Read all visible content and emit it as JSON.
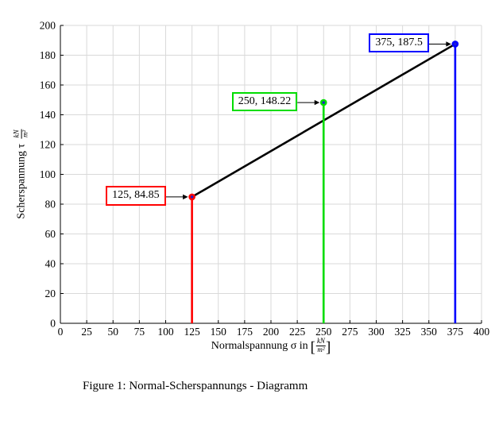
{
  "figure": {
    "caption": "Figure 1: Normal-Scherspannungs - Diagramm",
    "background": "#ffffff"
  },
  "chart_data": {
    "type": "scatter",
    "title": "",
    "xlabel": "Normalspannung σ in [kN/m²]",
    "ylabel": "Scherspannung τ kN/m²",
    "xlabel_prefix": "Normalspannung σ in",
    "ylabel_prefix": "Scherspannung τ",
    "unit_frac": {
      "num": "kN",
      "den": "m²"
    },
    "brackets": [
      "[",
      "]"
    ],
    "xlim": [
      0,
      400
    ],
    "ylim": [
      0,
      200
    ],
    "x_ticks": [
      0,
      25,
      50,
      75,
      100,
      125,
      150,
      175,
      200,
      225,
      250,
      275,
      300,
      325,
      350,
      375,
      400
    ],
    "y_ticks": [
      0,
      20,
      40,
      60,
      80,
      100,
      120,
      140,
      160,
      180,
      200
    ],
    "grid": true,
    "grid_color": "#d9d9d9",
    "axis_color": "#000000",
    "marker_center_color": "#2020cc",
    "points": [
      {
        "x": 125,
        "y": 84.85,
        "label": "125, 84.85",
        "color": "#ff0000"
      },
      {
        "x": 250,
        "y": 148.22,
        "label": "250, 148.22",
        "color": "#00dd00"
      },
      {
        "x": 375,
        "y": 187.5,
        "label": "375, 187.5",
        "color": "#0000ff"
      }
    ],
    "line": {
      "color": "#000000",
      "from": [
        125,
        84.85
      ],
      "to": [
        375,
        187.5
      ]
    }
  }
}
